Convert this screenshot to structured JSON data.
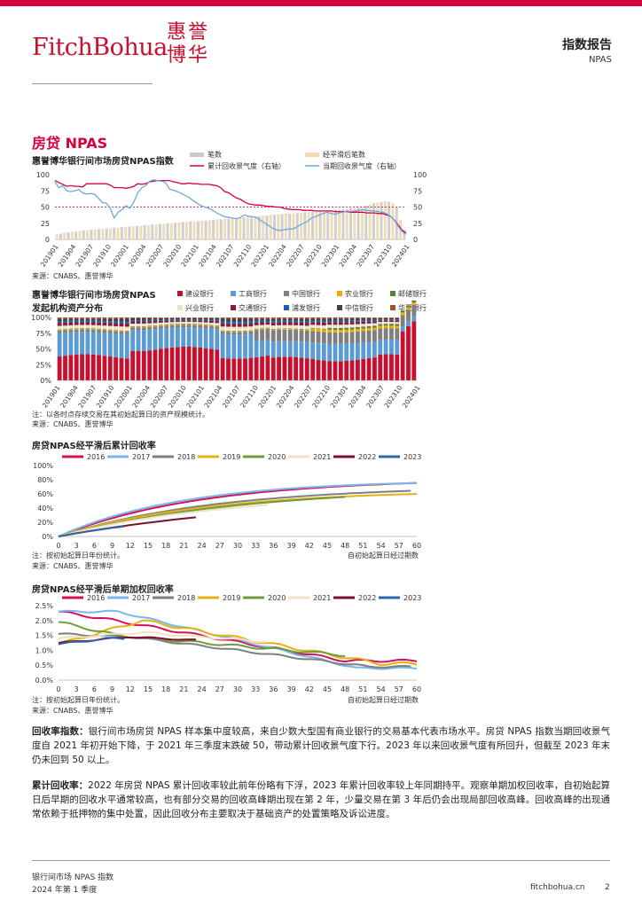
{
  "header": {
    "logo_text": "FitchBohua",
    "logo_seal": "惠誉博华",
    "report_title": "指数报告",
    "report_subtitle": "NPAS"
  },
  "section_title": "房贷 NPAS",
  "colors": {
    "accent": "#d6003a",
    "bank": [
      "#c8102e",
      "#5b9bd5",
      "#7f7f7f",
      "#f2a900",
      "#548235",
      "#f2e2c4",
      "#8b1a3a",
      "#1f5fa8",
      "#404040",
      "#a0522d"
    ],
    "vintage": [
      "#d6105a",
      "#79b6ea",
      "#7f7f7f",
      "#e8b014",
      "#6e9c3c",
      "#f0e2c0",
      "#7c1030",
      "#2b64a8"
    ]
  },
  "charts": [
    {
      "type": "bar-line",
      "title": "惠誉博华银行间市场房贷NPAS指数",
      "legend": [
        "笔数",
        "经平滑后笔数",
        "累计回收景气度（右轴）",
        "当期回收景气度（右轴）"
      ],
      "yticks": [
        "100",
        "75",
        "50",
        "25",
        "0"
      ],
      "yticks_right": [
        "100",
        "75",
        "50",
        "25",
        "0"
      ],
      "xticks": [
        "201901",
        "201904",
        "201907",
        "201910",
        "202001",
        "202004",
        "202007",
        "202010",
        "202101",
        "202104",
        "202107",
        "202110",
        "202201",
        "202204",
        "202207",
        "202210",
        "202301",
        "202304",
        "202307",
        "202310",
        "202401"
      ],
      "reference_line": 50,
      "source": "来源：CNABS、惠誉博华",
      "counts": [
        8,
        9,
        10,
        11,
        12,
        12,
        13,
        14,
        14,
        15,
        15,
        16,
        16,
        17,
        17,
        18,
        18,
        19,
        19,
        20,
        20,
        21,
        21,
        22,
        22,
        23,
        23,
        24,
        24,
        25,
        25,
        26,
        26,
        27,
        27,
        28,
        28,
        28,
        29,
        29,
        30,
        30,
        31,
        31,
        32,
        32,
        33,
        33,
        34,
        34,
        35,
        35,
        36,
        36,
        37,
        37,
        38,
        38,
        39,
        39,
        40,
        40,
        40,
        41,
        41,
        42,
        42,
        43,
        43,
        44,
        44,
        45,
        45,
        46,
        46,
        47,
        47,
        48,
        48,
        49,
        50,
        52,
        54,
        56,
        57,
        58,
        59,
        58,
        56,
        50,
        30,
        15
      ],
      "cumulative": [
        91,
        88,
        85,
        82,
        83,
        82,
        82,
        81,
        86,
        86,
        86,
        86,
        86,
        86,
        84,
        80,
        80,
        80,
        79,
        80,
        82,
        86,
        85,
        86,
        89,
        90,
        91,
        91,
        91,
        91,
        89,
        88,
        86,
        86,
        87,
        86,
        86,
        85,
        85,
        85,
        84,
        83,
        80,
        74,
        72,
        68,
        64,
        62,
        58,
        55,
        54,
        53,
        53,
        52,
        51,
        51,
        50,
        50,
        48,
        47,
        46,
        46,
        46,
        45,
        45,
        45,
        44,
        44,
        44,
        44,
        44,
        43,
        43,
        43,
        43,
        42,
        42,
        42,
        42,
        41,
        41,
        41,
        40,
        40,
        38,
        36,
        30,
        22,
        14,
        10
      ],
      "current": [
        89,
        80,
        83,
        75,
        74,
        75,
        77,
        72,
        70,
        71,
        70,
        64,
        57,
        56,
        48,
        33,
        42,
        46,
        52,
        48,
        58,
        72,
        80,
        83,
        90,
        92,
        91,
        90,
        88,
        78,
        76,
        74,
        71,
        68,
        65,
        60,
        56,
        52,
        50,
        48,
        45,
        41,
        38,
        35,
        34,
        33,
        32,
        34,
        38,
        36,
        35,
        34,
        30,
        26,
        22,
        18,
        15,
        14,
        15,
        16,
        16,
        18,
        22,
        25,
        28,
        33,
        35,
        38,
        40,
        42,
        40,
        39,
        41,
        42,
        44,
        43,
        44,
        45,
        46,
        45,
        44,
        44,
        43,
        42,
        40,
        36,
        30,
        20,
        12,
        8
      ]
    },
    {
      "type": "stacked-bar",
      "title_line1": "惠誉博华银行间市场房贷NPAS",
      "title_line2": "发起机构资产分布",
      "legend": [
        "建设银行",
        "工商银行",
        "中国银行",
        "农业银行",
        "邮储银行",
        "兴业银行",
        "交通银行",
        "浦发银行",
        "中信银行",
        "华夏银行"
      ],
      "yticks": [
        "100%",
        "75%",
        "50%",
        "25%",
        "0%"
      ],
      "xticks": [
        "201901",
        "201904",
        "201907",
        "201910",
        "202001",
        "202004",
        "202007",
        "202010",
        "202101",
        "202104",
        "202107",
        "202110",
        "202201",
        "202204",
        "202207",
        "202210",
        "202301",
        "202304",
        "202307",
        "202310",
        "202401"
      ],
      "note": "注：以各时点存续交易在其初始起算日的资产规模统计。",
      "source": "来源：CNABS、惠誉博华"
    },
    {
      "type": "line",
      "title": "房贷NPAS经平滑后累计回收率",
      "legend": [
        "2016",
        "2017",
        "2018",
        "2019",
        "2020",
        "2021",
        "2022",
        "2023"
      ],
      "yticks": [
        "100%",
        "80%",
        "60%",
        "40%",
        "20%",
        "0%"
      ],
      "xticks": [
        "0",
        "3",
        "6",
        "9",
        "12",
        "15",
        "18",
        "21",
        "24",
        "27",
        "30",
        "33",
        "36",
        "39",
        "42",
        "45",
        "48",
        "51",
        "54",
        "57",
        "60"
      ],
      "note": "注：按初始起算日年份统计。",
      "xlabel": "自初始起算日经过期数",
      "source": "来源：CNABS、惠誉博华"
    },
    {
      "type": "line",
      "title": "房贷NPAS经平滑后单期加权回收率",
      "legend": [
        "2016",
        "2017",
        "2018",
        "2019",
        "2020",
        "2021",
        "2022",
        "2023"
      ],
      "yticks": [
        "2.5%",
        "2.0%",
        "1.5%",
        "1.0%",
        "0.5%",
        "0.0%"
      ],
      "xticks": [
        "0",
        "3",
        "6",
        "9",
        "12",
        "15",
        "18",
        "21",
        "24",
        "27",
        "30",
        "33",
        "36",
        "39",
        "42",
        "45",
        "48",
        "51",
        "54",
        "57",
        "60"
      ],
      "note": "注：按初始起算日年份统计。",
      "xlabel": "自初始起算日经过期数",
      "source": "来源：CNABS、惠誉博华"
    }
  ],
  "paragraphs": [
    {
      "lead": "回收率指数：",
      "text": "银行间市场房贷 NPAS 样本集中度较高，来自少数大型国有商业银行的交易基本代表市场水平。房贷 NPAS 指数当期回收景气度自 2021 年初开始下降，于 2021 年三季度末跌破 50，带动累计回收景气度下行。2023 年以来回收景气度有所回升，但截至 2023 年末仍未回到 50 以上。"
    },
    {
      "lead": "累计回收率：",
      "text": "2022 年房贷 NPAS 累计回收率较此前年份略有下浮，2023 年累计回收率较上年同期持平。观察单期加权回收率，自初始起算日后早期的回收水平通常较高，也有部分交易的回收高峰期出现在第 2 年，少量交易在第 3 年后仍会出现局部回收高峰。回收高峰的出现通常依赖于抵押物的集中处置，因此回收分布主要取决于基础资产的处置策略及诉讼进度。"
    }
  ],
  "footer": {
    "left_line1": "银行间市场 NPAS 指数",
    "left_line2": "2024 年第 1 季度",
    "site": "fitchbohua.cn",
    "page": "2"
  }
}
